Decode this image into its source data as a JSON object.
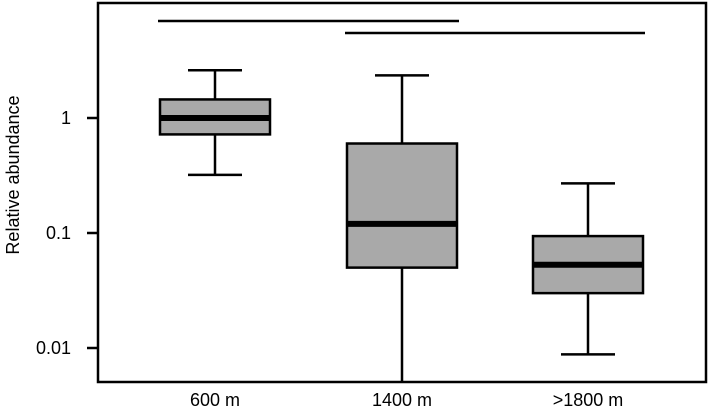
{
  "chart_data": {
    "type": "box",
    "ylabel": "Relative abundance",
    "yscale": "log",
    "ylim": [
      0.0045,
      9.0
    ],
    "yticks": [
      {
        "value": 1,
        "label": "1"
      },
      {
        "value": 0.1,
        "label": "0.1"
      },
      {
        "value": 0.01,
        "label": "0.01"
      }
    ],
    "categories": [
      "600 m",
      "1400 m",
      ">1800 m"
    ],
    "boxes": [
      {
        "whisker_low": 0.32,
        "q1": 0.72,
        "median": 1.0,
        "q3": 1.45,
        "whisker_high": 2.6
      },
      {
        "whisker_low": 0.0045,
        "q1": 0.05,
        "median": 0.12,
        "q3": 0.6,
        "whisker_high": 2.35
      },
      {
        "whisker_low": 0.0088,
        "q1": 0.03,
        "median": 0.053,
        "q3": 0.094,
        "whisker_high": 0.27
      }
    ],
    "significance_bars": [
      {
        "from": 0,
        "to": 1
      },
      {
        "from": 1,
        "to": 2
      }
    ],
    "box_color": "#a9a9a9",
    "line_color": "#000000"
  }
}
